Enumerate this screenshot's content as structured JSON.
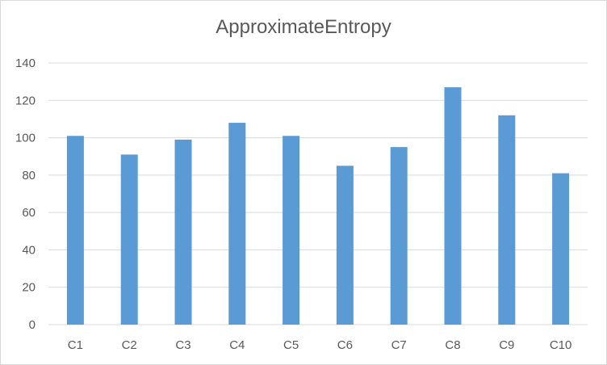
{
  "chart_data": {
    "type": "bar",
    "title": "ApproximateEntropy",
    "xlabel": "",
    "ylabel": "",
    "categories": [
      "C1",
      "C2",
      "C3",
      "C4",
      "C5",
      "C6",
      "C7",
      "C8",
      "C9",
      "C10"
    ],
    "values": [
      101,
      91,
      99,
      108,
      101,
      85,
      95,
      127,
      112,
      81
    ],
    "ylim": [
      0,
      140
    ],
    "yticks": [
      0,
      20,
      40,
      60,
      80,
      100,
      120,
      140
    ],
    "grid": true,
    "legend": "none",
    "bar_color": "#5b9bd5",
    "grid_color": "#d9d9d9",
    "text_color": "#595959"
  }
}
